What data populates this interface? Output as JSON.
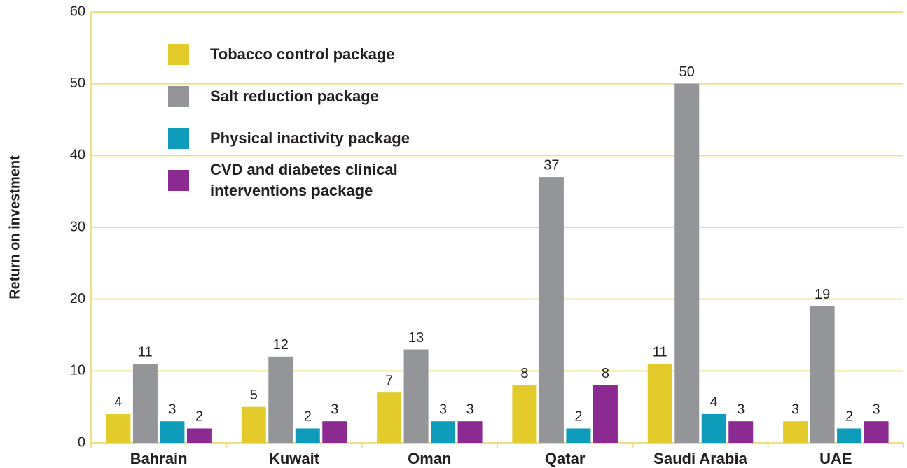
{
  "chart_data": {
    "type": "bar",
    "y_label": "Return on investment",
    "categories": [
      "Bahrain",
      "Kuwait",
      "Oman",
      "Qatar",
      "Saudi Arabia",
      "UAE"
    ],
    "series": [
      {
        "name": "Tobacco control package",
        "color": "#e2cb2a",
        "values": [
          4,
          5,
          7,
          8,
          11,
          3
        ]
      },
      {
        "name": "Salt reduction package",
        "color": "#939598",
        "values": [
          11,
          12,
          13,
          37,
          50,
          19
        ]
      },
      {
        "name": "Physical inactivity package",
        "color": "#0e9cba",
        "values": [
          3,
          2,
          3,
          2,
          4,
          2
        ]
      },
      {
        "name": "CVD and diabetes clinical interventions package",
        "color": "#8b2a90",
        "values": [
          2,
          3,
          3,
          8,
          3,
          3
        ]
      }
    ],
    "ylim": [
      0,
      60
    ],
    "yticks": [
      0,
      10,
      20,
      30,
      40,
      50,
      60
    ],
    "grid": true,
    "legend": "upper left"
  }
}
